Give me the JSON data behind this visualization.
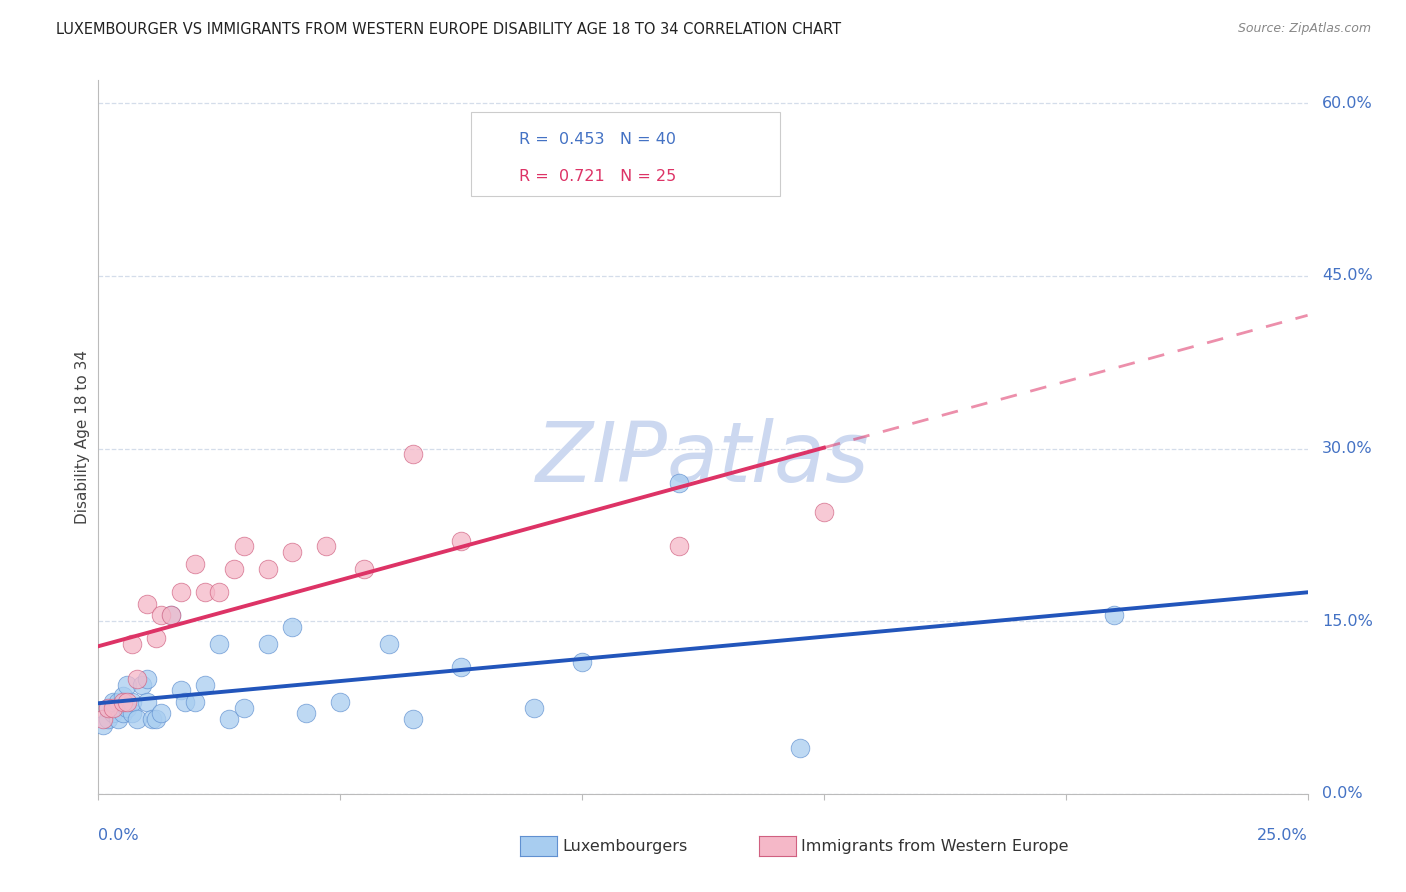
{
  "title": "LUXEMBOURGER VS IMMIGRANTS FROM WESTERN EUROPE DISABILITY AGE 18 TO 34 CORRELATION CHART",
  "source": "Source: ZipAtlas.com",
  "ylabel": "Disability Age 18 to 34",
  "legend_label_lux": "Luxembourgers",
  "legend_label_imm": "Immigrants from Western Europe",
  "blue_r": 0.453,
  "blue_n": 40,
  "pink_r": 0.721,
  "pink_n": 25,
  "xlim": [
    0.0,
    0.25
  ],
  "ylim": [
    0.0,
    0.62
  ],
  "yticks": [
    0.0,
    0.15,
    0.3,
    0.45,
    0.6
  ],
  "ytick_labels": [
    "0.0%",
    "15.0%",
    "30.0%",
    "45.0%",
    "60.0%"
  ],
  "xticks": [
    0.0,
    0.05,
    0.1,
    0.15,
    0.2,
    0.25
  ],
  "blue_x": [
    0.001,
    0.002,
    0.002,
    0.003,
    0.003,
    0.004,
    0.004,
    0.005,
    0.005,
    0.006,
    0.006,
    0.007,
    0.007,
    0.008,
    0.009,
    0.01,
    0.01,
    0.011,
    0.012,
    0.013,
    0.015,
    0.017,
    0.018,
    0.02,
    0.022,
    0.025,
    0.027,
    0.03,
    0.035,
    0.04,
    0.043,
    0.05,
    0.06,
    0.065,
    0.075,
    0.09,
    0.1,
    0.12,
    0.145,
    0.21
  ],
  "blue_y": [
    0.06,
    0.065,
    0.075,
    0.07,
    0.08,
    0.065,
    0.08,
    0.07,
    0.085,
    0.075,
    0.095,
    0.07,
    0.08,
    0.065,
    0.095,
    0.1,
    0.08,
    0.065,
    0.065,
    0.07,
    0.155,
    0.09,
    0.08,
    0.08,
    0.095,
    0.13,
    0.065,
    0.075,
    0.13,
    0.145,
    0.07,
    0.08,
    0.13,
    0.065,
    0.11,
    0.075,
    0.115,
    0.27,
    0.04,
    0.155
  ],
  "pink_x": [
    0.001,
    0.002,
    0.003,
    0.005,
    0.006,
    0.007,
    0.008,
    0.01,
    0.012,
    0.013,
    0.015,
    0.017,
    0.02,
    0.022,
    0.025,
    0.028,
    0.03,
    0.035,
    0.04,
    0.047,
    0.055,
    0.065,
    0.075,
    0.12,
    0.15
  ],
  "pink_y": [
    0.065,
    0.075,
    0.075,
    0.08,
    0.08,
    0.13,
    0.1,
    0.165,
    0.135,
    0.155,
    0.155,
    0.175,
    0.2,
    0.175,
    0.175,
    0.195,
    0.215,
    0.195,
    0.21,
    0.215,
    0.195,
    0.295,
    0.22,
    0.215,
    0.245
  ],
  "blue_scatter_color": "#a8cdf0",
  "blue_scatter_edge": "#6090d0",
  "pink_scatter_color": "#f5b8c8",
  "pink_scatter_edge": "#d06080",
  "blue_line_color": "#2255bb",
  "pink_line_color": "#dd3366",
  "title_color": "#222222",
  "axis_color": "#4472C4",
  "watermark_color": "#ccd8f0",
  "grid_color": "#d0dae8",
  "bg_color": "#ffffff",
  "source_color": "#888888",
  "ylabel_color": "#444444"
}
